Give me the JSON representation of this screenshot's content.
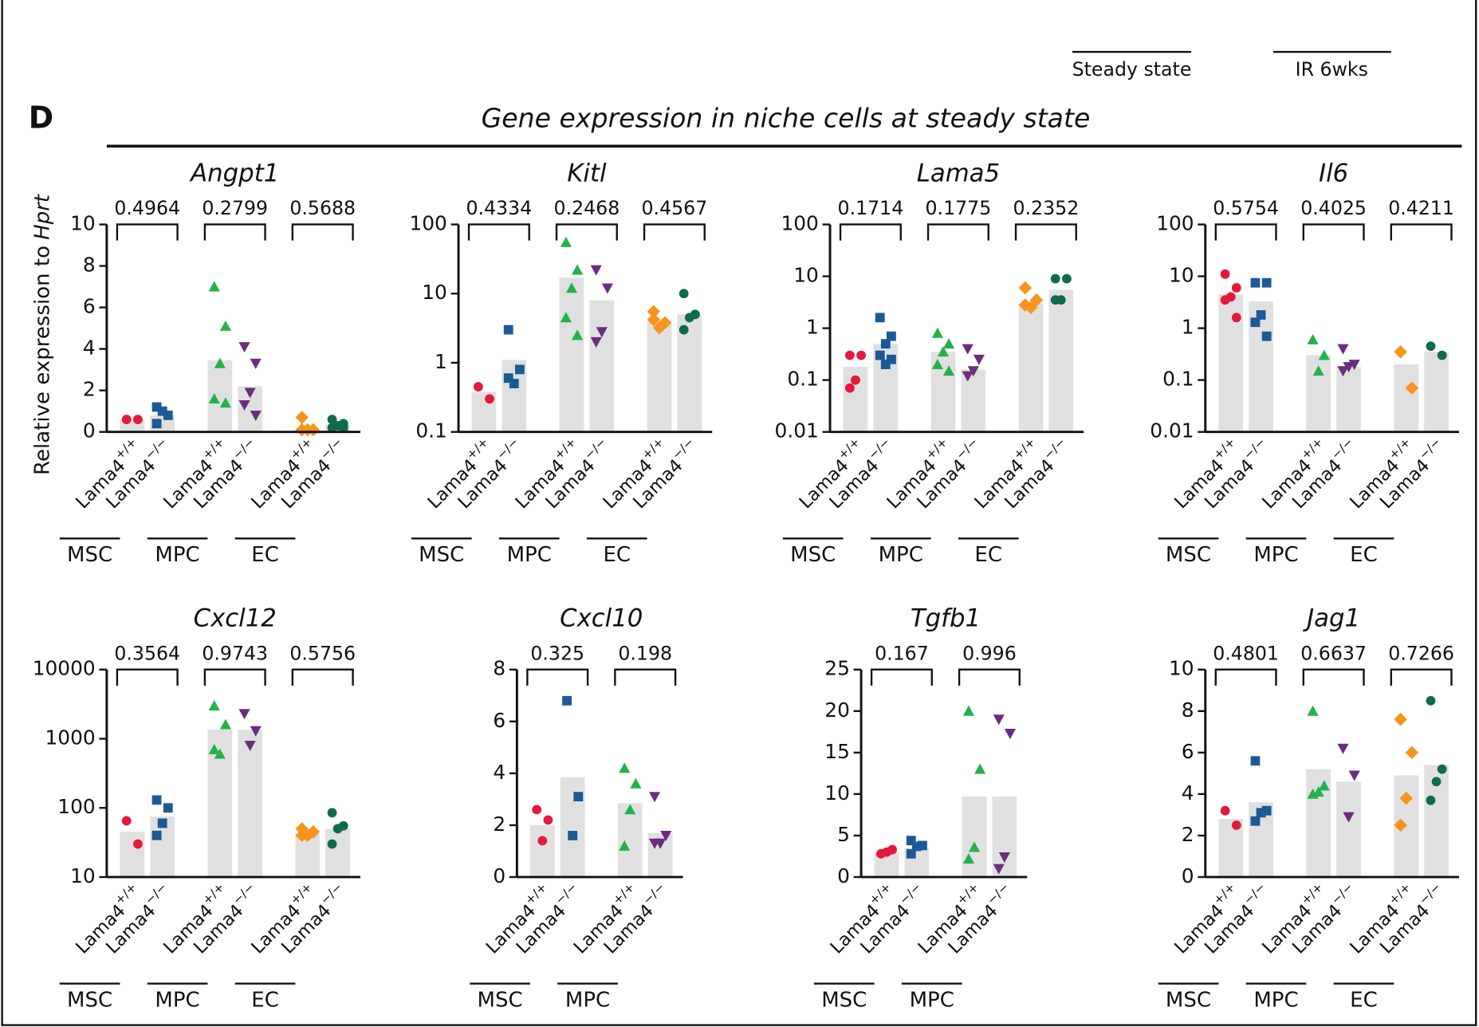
{
  "panel_letter": "D",
  "title": "Gene expression in niche cells at steady state",
  "y_label": "Relative expression to",
  "y_label_gene": "Hprt",
  "genotype_base": "Lama4",
  "genotypes": [
    "+/+",
    "−/−"
  ],
  "upper_groups": [
    "Steady state",
    "IR 6wks"
  ],
  "chart_data": [
    {
      "type": "dot_bar",
      "title": "Angpt1",
      "log": false,
      "ylim": [
        0,
        10
      ],
      "yticks": [
        0,
        2,
        4,
        6,
        8,
        10
      ],
      "bar_color": "#e0e0e0",
      "groups": [
        "MSC",
        "MPC",
        "EC"
      ],
      "p_values": [
        "0.4964",
        "0.2799",
        "0.5688"
      ],
      "series": [
        {
          "color": "#e31a3c",
          "marker": "circle",
          "mean": 0.6,
          "points": [
            0.6,
            0.6
          ]
        },
        {
          "color": "#1a5a96",
          "marker": "square",
          "mean": 0.8,
          "points": [
            0.4,
            0.8,
            1.0,
            1.2
          ]
        },
        {
          "color": "#22b24c",
          "marker": "triangle",
          "mean": 3.45,
          "points": [
            7.0,
            5.1,
            3.3,
            1.6,
            1.4
          ]
        },
        {
          "color": "#6b2d7f",
          "marker": "triangle-down",
          "mean": 2.2,
          "points": [
            4.1,
            3.3,
            1.9,
            1.3,
            0.8
          ]
        },
        {
          "color": "#f7941d",
          "marker": "diamond",
          "mean": 0.15,
          "points": [
            0.7,
            0.1,
            0.1,
            0.1
          ]
        },
        {
          "color": "#0e6b4f",
          "marker": "circle",
          "mean": 0.35,
          "points": [
            0.6,
            0.4,
            0.3,
            0.2,
            0.2
          ]
        }
      ]
    },
    {
      "type": "dot_bar",
      "title": "Kitl",
      "log": true,
      "ylim": [
        0.1,
        100
      ],
      "yticks": [
        0.1,
        1,
        10,
        100
      ],
      "bar_color": "#e0e0e0",
      "groups": [
        "MSC",
        "MPC",
        "EC"
      ],
      "p_values": [
        "0.4334",
        "0.2468",
        "0.4567"
      ],
      "series": [
        {
          "color": "#e31a3c",
          "marker": "circle",
          "mean": 0.38,
          "points": [
            0.45,
            0.3
          ]
        },
        {
          "color": "#1a5a96",
          "marker": "square",
          "mean": 1.1,
          "points": [
            3.0,
            0.8,
            0.5,
            0.6
          ]
        },
        {
          "color": "#22b24c",
          "marker": "triangle",
          "mean": 17,
          "points": [
            55,
            22,
            12,
            4.5,
            2.5
          ]
        },
        {
          "color": "#6b2d7f",
          "marker": "triangle-down",
          "mean": 8,
          "points": [
            22,
            12,
            2.8,
            2.0
          ]
        },
        {
          "color": "#f7941d",
          "marker": "diamond",
          "mean": 4,
          "points": [
            5.5,
            3.8,
            3.2,
            4.2
          ]
        },
        {
          "color": "#0e6b4f",
          "marker": "circle",
          "mean": 5,
          "points": [
            10,
            5,
            4.5,
            3
          ]
        }
      ]
    },
    {
      "type": "dot_bar",
      "title": "Lama5",
      "log": true,
      "ylim": [
        0.01,
        100
      ],
      "yticks": [
        0.01,
        0.1,
        1,
        10,
        100
      ],
      "bar_color": "#e0e0e0",
      "groups": [
        "MSC",
        "MPC",
        "EC"
      ],
      "p_values": [
        "0.1714",
        "0.1775",
        "0.2352"
      ],
      "series": [
        {
          "color": "#e31a3c",
          "marker": "circle",
          "mean": 0.18,
          "points": [
            0.3,
            0.3,
            0.1,
            0.07
          ]
        },
        {
          "color": "#1a5a96",
          "marker": "square",
          "mean": 0.5,
          "points": [
            1.6,
            0.7,
            0.5,
            0.3,
            0.25,
            0.2
          ]
        },
        {
          "color": "#22b24c",
          "marker": "triangle",
          "mean": 0.35,
          "points": [
            0.8,
            0.5,
            0.35,
            0.2,
            0.15
          ]
        },
        {
          "color": "#6b2d7f",
          "marker": "triangle-down",
          "mean": 0.16,
          "points": [
            0.4,
            0.25,
            0.15,
            0.12
          ]
        },
        {
          "color": "#f7941d",
          "marker": "diamond",
          "mean": 3,
          "points": [
            6,
            3.5,
            2.5,
            2.8
          ]
        },
        {
          "color": "#0e6b4f",
          "marker": "circle",
          "mean": 5.5,
          "points": [
            9,
            9,
            3.5,
            3.5
          ]
        }
      ]
    },
    {
      "type": "dot_bar",
      "title": "Il6",
      "log": true,
      "ylim": [
        0.01,
        100
      ],
      "yticks": [
        0.01,
        0.1,
        1,
        10,
        100
      ],
      "bar_color": "#e0e0e0",
      "groups": [
        "MSC",
        "MPC",
        "EC"
      ],
      "p_values": [
        "0.5754",
        "0.4025",
        "0.4211"
      ],
      "series": [
        {
          "color": "#e31a3c",
          "marker": "circle",
          "mean": 4.5,
          "points": [
            11,
            6,
            4,
            3.5,
            1.6
          ]
        },
        {
          "color": "#1a5a96",
          "marker": "square",
          "mean": 3.3,
          "points": [
            7.5,
            7.5,
            1.8,
            1.3,
            0.7
          ]
        },
        {
          "color": "#22b24c",
          "marker": "triangle",
          "mean": 0.3,
          "points": [
            0.6,
            0.3,
            0.15
          ]
        },
        {
          "color": "#6b2d7f",
          "marker": "triangle-down",
          "mean": 0.18,
          "points": [
            0.4,
            0.2,
            0.18,
            0.15
          ]
        },
        {
          "color": "#f7941d",
          "marker": "diamond",
          "mean": 0.2,
          "points": [
            0.35,
            0.07
          ]
        },
        {
          "color": "#0e6b4f",
          "marker": "circle",
          "mean": 0.35,
          "points": [
            0.45,
            0.3
          ]
        }
      ]
    },
    {
      "type": "dot_bar",
      "title": "Cxcl12",
      "log": true,
      "ylim": [
        10,
        10000
      ],
      "yticks": [
        10,
        100,
        1000,
        10000
      ],
      "bar_color": "#e0e0e0",
      "groups": [
        "MSC",
        "MPC",
        "EC"
      ],
      "p_values": [
        "0.3564",
        "0.9743",
        "0.5756"
      ],
      "series": [
        {
          "color": "#e31a3c",
          "marker": "circle",
          "mean": 45,
          "points": [
            65,
            30
          ]
        },
        {
          "color": "#1a5a96",
          "marker": "square",
          "mean": 75,
          "points": [
            130,
            100,
            60,
            40
          ]
        },
        {
          "color": "#22b24c",
          "marker": "triangle",
          "mean": 1350,
          "points": [
            3000,
            1600,
            600,
            700
          ]
        },
        {
          "color": "#6b2d7f",
          "marker": "triangle-down",
          "mean": 1350,
          "points": [
            2300,
            1300,
            800
          ]
        },
        {
          "color": "#f7941d",
          "marker": "diamond",
          "mean": 42,
          "points": [
            50,
            45,
            40,
            40,
            45
          ]
        },
        {
          "color": "#0e6b4f",
          "marker": "circle",
          "mean": 50,
          "points": [
            85,
            55,
            50,
            30
          ]
        }
      ]
    },
    {
      "type": "dot_bar",
      "title": "Cxcl10",
      "log": false,
      "ylim": [
        0,
        8
      ],
      "yticks": [
        0,
        2,
        4,
        6,
        8
      ],
      "bar_color": "#e0e0e0",
      "groups": [
        "MSC",
        "MPC"
      ],
      "p_values": [
        "0.325",
        "0.198"
      ],
      "series": [
        {
          "color": "#e31a3c",
          "marker": "circle",
          "mean": 2.0,
          "points": [
            2.6,
            2.2,
            1.4
          ]
        },
        {
          "color": "#1a5a96",
          "marker": "square",
          "mean": 3.85,
          "points": [
            6.8,
            3.1,
            1.6
          ]
        },
        {
          "color": "#22b24c",
          "marker": "triangle",
          "mean": 2.85,
          "points": [
            4.2,
            3.6,
            2.6,
            1.2
          ]
        },
        {
          "color": "#6b2d7f",
          "marker": "triangle-down",
          "mean": 1.7,
          "points": [
            3.1,
            1.6,
            1.3,
            1.3
          ]
        }
      ]
    },
    {
      "type": "dot_bar",
      "title": "Tgfb1",
      "log": false,
      "ylim": [
        0,
        25
      ],
      "yticks": [
        0,
        5,
        10,
        15,
        20,
        25
      ],
      "bar_color": "#e0e0e0",
      "groups": [
        "MSC",
        "MPC"
      ],
      "p_values": [
        "0.167",
        "0.996"
      ],
      "series": [
        {
          "color": "#e31a3c",
          "marker": "circle",
          "mean": 3,
          "points": [
            2.8,
            3.3,
            3.0
          ]
        },
        {
          "color": "#1a5a96",
          "marker": "square",
          "mean": 3.5,
          "points": [
            4.4,
            3.8,
            3.7,
            2.8
          ]
        },
        {
          "color": "#22b24c",
          "marker": "triangle",
          "mean": 9.7,
          "points": [
            20,
            13,
            3.6,
            2.2
          ]
        },
        {
          "color": "#6b2d7f",
          "marker": "triangle-down",
          "mean": 9.7,
          "points": [
            19,
            17.3,
            2.4,
            1.0
          ]
        }
      ]
    },
    {
      "type": "dot_bar",
      "title": "Jag1",
      "log": false,
      "ylim": [
        0,
        10
      ],
      "yticks": [
        0,
        2,
        4,
        6,
        8,
        10
      ],
      "bar_color": "#e0e0e0",
      "groups": [
        "MSC",
        "MPC",
        "EC"
      ],
      "p_values": [
        "0.4801",
        "0.6637",
        "0.7266"
      ],
      "series": [
        {
          "color": "#e31a3c",
          "marker": "circle",
          "mean": 2.8,
          "points": [
            3.2,
            2.5
          ]
        },
        {
          "color": "#1a5a96",
          "marker": "square",
          "mean": 3.6,
          "points": [
            5.6,
            3.2,
            3.1,
            2.7
          ]
        },
        {
          "color": "#22b24c",
          "marker": "triangle",
          "mean": 5.2,
          "points": [
            8.0,
            4.4,
            4.1,
            4.0
          ]
        },
        {
          "color": "#6b2d7f",
          "marker": "triangle-down",
          "mean": 4.6,
          "points": [
            6.2,
            4.9,
            2.9
          ]
        },
        {
          "color": "#f7941d",
          "marker": "diamond",
          "mean": 4.9,
          "points": [
            7.6,
            6.0,
            3.8,
            2.5
          ]
        },
        {
          "color": "#0e6b4f",
          "marker": "circle",
          "mean": 5.4,
          "points": [
            8.5,
            5.2,
            4.6,
            3.7
          ]
        }
      ]
    }
  ]
}
